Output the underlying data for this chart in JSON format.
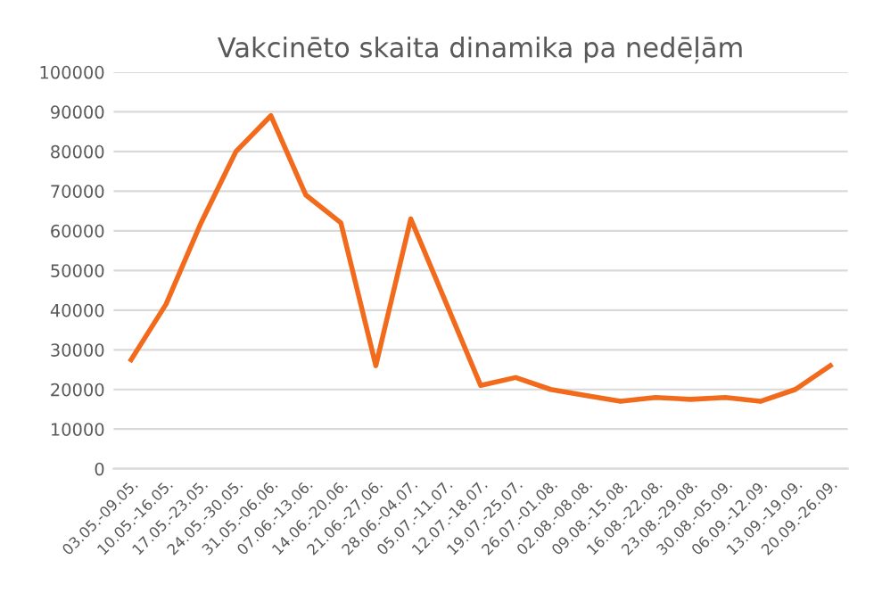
{
  "chart_data": {
    "type": "line",
    "title": "Vakcinēto skaita dinamika pa nedēļām",
    "categories": [
      "03.05.-09.05.",
      "10.05.-16.05.",
      "17.05.-23.05.",
      "24.05.-30.05.",
      "31.05.-06.06.",
      "07.06.-13.06.",
      "14.06.-20.06.",
      "21.06.-27.06.",
      "28.06.-04.07.",
      "05.07.-11.07.",
      "12.07.-18.07.",
      "19.07.-25.07.",
      "26.07.-01.08.",
      "02.08.-08.08.",
      "09.08.-15.08.",
      "16.08.-22.08.",
      "23.08.-29.08.",
      "30.08.-05.09.",
      "06.09.-12.09.",
      "13.09.-19.09.",
      "20.09.-26.09."
    ],
    "series": [
      {
        "color": "#f26b1d",
        "values": [
          27500,
          41500,
          62000,
          80000,
          89000,
          69000,
          62000,
          26000,
          63000,
          42000,
          21000,
          23000,
          20000,
          18500,
          17000,
          18000,
          17500,
          18000,
          17000,
          20000,
          26000
        ]
      }
    ],
    "ylim": [
      0,
      100000
    ],
    "yticks": [
      0,
      10000,
      20000,
      30000,
      40000,
      50000,
      60000,
      70000,
      80000,
      90000,
      100000
    ],
    "grid": "y",
    "legend": false,
    "marker": "none",
    "line_style": "solid"
  }
}
